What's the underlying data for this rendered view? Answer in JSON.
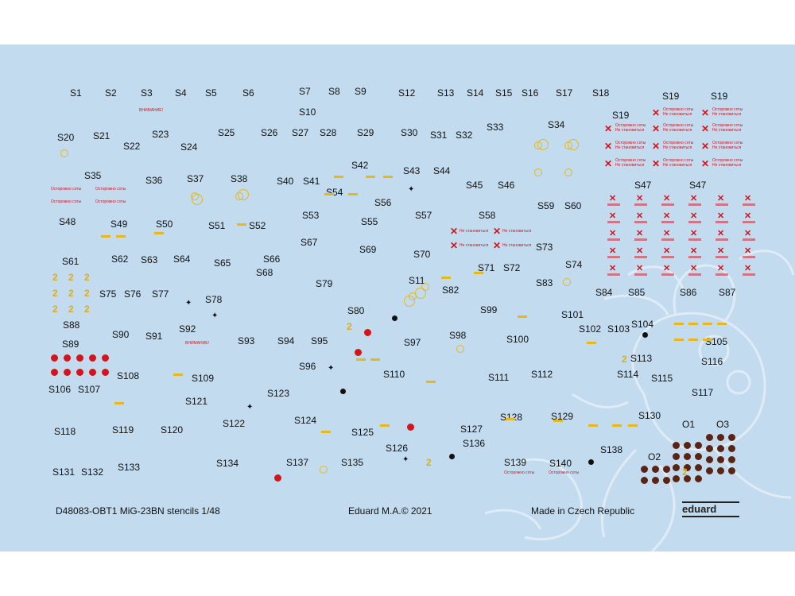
{
  "sheet": {
    "footer_left": "D48083-OBT1 MiG-23BN stencils 1/48",
    "footer_center": "Eduard M.A.© 2021",
    "footer_right": "Made in Czech Republic",
    "brand": "eduard",
    "colors": {
      "background": "#c3dbef",
      "red": "#d3141b",
      "yellow": "#e5b81e",
      "brown": "#5a2414"
    }
  },
  "stencil_labels": [
    "S1",
    "S2",
    "S3",
    "S4",
    "S5",
    "S6",
    "S7",
    "S8",
    "S9",
    "S10",
    "S11",
    "S12",
    "S13",
    "S14",
    "S15",
    "S16",
    "S17",
    "S18",
    "S19",
    "S19",
    "S19",
    "S20",
    "S21",
    "S22",
    "S23",
    "S24",
    "S25",
    "S26",
    "S27",
    "S28",
    "S29",
    "S30",
    "S31",
    "S32",
    "S33",
    "S34",
    "S35",
    "S36",
    "S37",
    "S38",
    "S40",
    "S41",
    "S42",
    "S43",
    "S44",
    "S45",
    "S46",
    "S47",
    "S47",
    "S48",
    "S49",
    "S50",
    "S51",
    "S52",
    "S53",
    "S54",
    "S55",
    "S56",
    "S57",
    "S58",
    "S59",
    "S60",
    "S61",
    "S62",
    "S63",
    "S64",
    "S65",
    "S66",
    "S67",
    "S68",
    "S69",
    "S70",
    "S71",
    "S72",
    "S73",
    "S74",
    "S75",
    "S76",
    "S77",
    "S78",
    "S79",
    "S80",
    "S82",
    "S83",
    "S84",
    "S85",
    "S86",
    "S87",
    "S88",
    "S89",
    "S90",
    "S91",
    "S92",
    "S93",
    "S94",
    "S95",
    "S96",
    "S97",
    "S98",
    "S99",
    "S100",
    "S101",
    "S102",
    "S103",
    "S104",
    "S105",
    "S106",
    "S107",
    "S108",
    "S109",
    "S110",
    "S111",
    "S112",
    "S113",
    "S114",
    "S115",
    "S116",
    "S117",
    "S118",
    "S119",
    "S120",
    "S121",
    "S122",
    "S123",
    "S124",
    "S125",
    "S126",
    "S127",
    "S128",
    "S129",
    "S130",
    "S131",
    "S132",
    "S133",
    "S134",
    "S135",
    "S136",
    "S137",
    "S138",
    "S139",
    "S140",
    "O1",
    "O2",
    "O3"
  ],
  "decal_text": {
    "warning_red": "Осторожно соты",
    "no_step": "Не становиться",
    "warning_caps": "ВНИМАНИЕ!",
    "yellow_two": "2"
  }
}
